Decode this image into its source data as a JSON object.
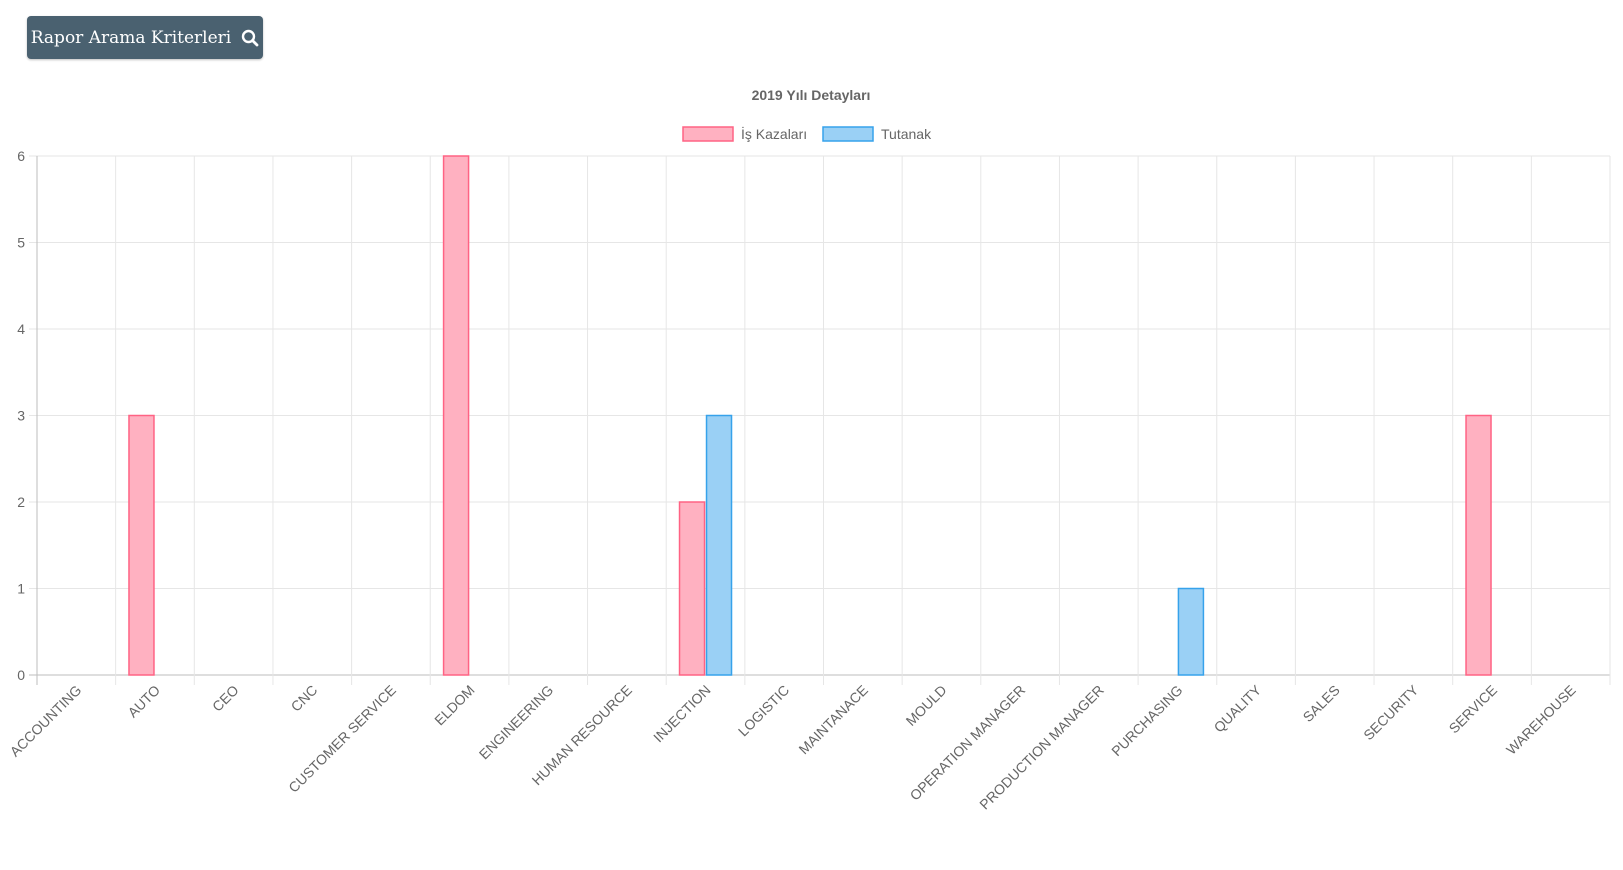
{
  "toolbar": {
    "search_label": "Rapor Arama Kriterleri",
    "search_icon": "search-icon"
  },
  "chart_data": {
    "type": "bar",
    "title": "2019 Yılı Detayları",
    "categories": [
      "ACCOUNTING",
      "AUTO",
      "CEO",
      "CNC",
      "CUSTOMER SERVICE",
      "ELDOM",
      "ENGINEERING",
      "HUMAN RESOURCE",
      "INJECTION",
      "LOGISTIC",
      "MAINTANACE",
      "MOULD",
      "OPERATION MANAGER",
      "PRODUCTION MANAGER",
      "PURCHASING",
      "QUALITY",
      "SALES",
      "SECURITY",
      "SERVICE",
      "WAREHOUSE"
    ],
    "series": [
      {
        "name": "İş Kazaları",
        "values": [
          0,
          3,
          0,
          0,
          0,
          6,
          0,
          0,
          2,
          0,
          0,
          0,
          0,
          0,
          0,
          0,
          0,
          0,
          3,
          0
        ],
        "fill": "#ffb1c1",
        "stroke": "#ff6384"
      },
      {
        "name": "Tutanak",
        "values": [
          0,
          0,
          0,
          0,
          0,
          0,
          0,
          0,
          3,
          0,
          0,
          0,
          0,
          0,
          1,
          0,
          0,
          0,
          0,
          0
        ],
        "fill": "#9ad0f5",
        "stroke": "#36a2eb"
      }
    ],
    "ylim": [
      0,
      6
    ],
    "yticks": [
      0,
      1,
      2,
      3,
      4,
      5,
      6
    ],
    "grid": true,
    "legend": "top-center"
  }
}
